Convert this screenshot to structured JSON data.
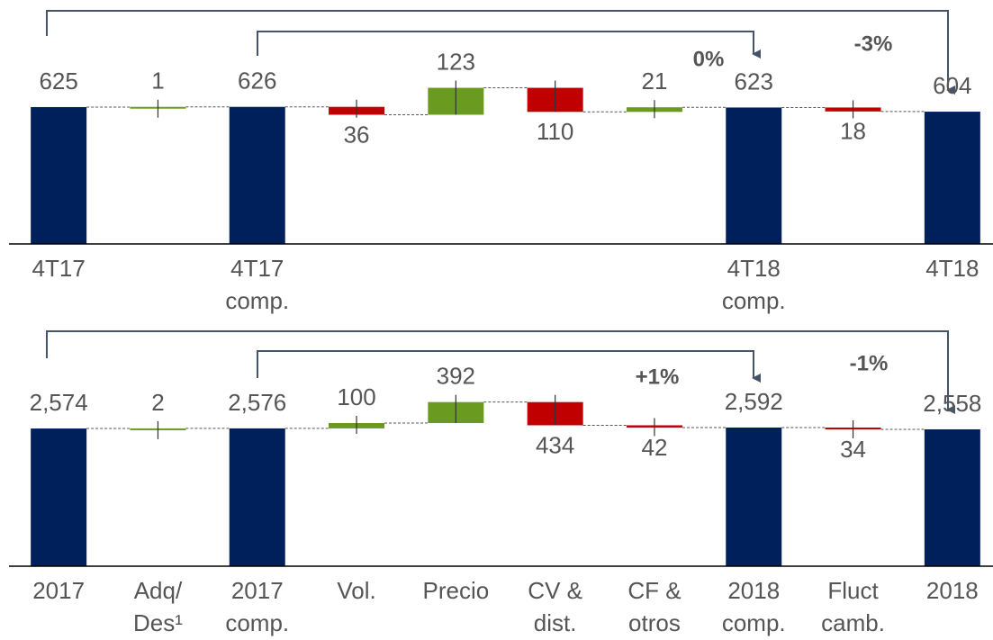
{
  "chart_data": [
    {
      "type": "waterfall",
      "categories": [
        "4T17",
        null,
        "4T17\ncomp.",
        null,
        null,
        null,
        null,
        "4T18\ncomp.",
        null,
        "4T18"
      ],
      "measure": [
        "absolute",
        "relative",
        "absolute",
        "relative",
        "relative",
        "relative",
        "relative",
        "absolute",
        "relative",
        "absolute"
      ],
      "values": [
        625,
        1,
        626,
        -36,
        123,
        -110,
        21,
        623,
        -18,
        604
      ],
      "value_labels": [
        "625",
        "1",
        "626",
        "36",
        "123",
        "110",
        "21",
        "623",
        "18",
        "604"
      ],
      "colors": {
        "absolute": "#00205b",
        "increase": "#6a9a1f",
        "decrease": "#c00000"
      },
      "ylim": [
        0,
        1114
      ],
      "annotations": [
        "0%",
        "-3%"
      ]
    },
    {
      "type": "waterfall",
      "categories": [
        "2017",
        "Adq/\nDes¹",
        "2017\ncomp.",
        "Vol.",
        "Precio",
        "CV &\ndist.",
        "CF &\notros",
        "2018\ncomp.",
        "Fluct\ncamb.",
        "2018"
      ],
      "measure": [
        "absolute",
        "relative",
        "absolute",
        "relative",
        "relative",
        "relative",
        "relative",
        "absolute",
        "relative",
        "absolute"
      ],
      "values": [
        2574,
        2,
        2576,
        100,
        392,
        -434,
        -42,
        2592,
        -34,
        2558
      ],
      "value_labels": [
        "2,574",
        "2",
        "2,576",
        "100",
        "392",
        "434",
        "42",
        "2,592",
        "34",
        "2,558"
      ],
      "colors": {
        "absolute": "#00205b",
        "increase": "#6a9a1f",
        "decrease": "#c00000"
      },
      "ylim": [
        0,
        4594
      ],
      "annotations": [
        "+1%",
        "-1%"
      ]
    }
  ]
}
